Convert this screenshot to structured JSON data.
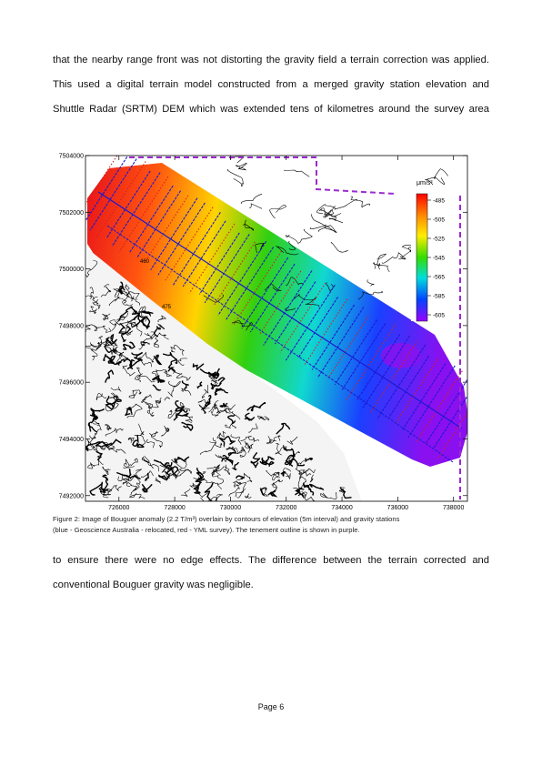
{
  "body": {
    "para1": [
      "that the nearby range front was not distorting the gravity field a terrain correction was applied.",
      "This used a digital terrain model constructed from a merged gravity station elevation and",
      "Shuttle Radar (SRTM) DEM which was extended tens of kilometres around the survey area"
    ],
    "para2": [
      "to ensure there were no edge effects. The difference between the terrain corrected and",
      "conventional Bouguer gravity was negligible."
    ]
  },
  "figure": {
    "caption_line1": "Figure 2: Image of Bouguer anomaly (2.2 T/m³) overlain by contours of elevation (5m interval) and gravity stations",
    "caption_line2": "(blue - Geoscience Australia - relocated, red - YML survey). The tenement outline is shown in purple.",
    "map_labels": [
      "460",
      "475"
    ],
    "colors": {
      "ga_stations": "#1a1ad0",
      "yml_stations": "#d02020",
      "tenement": "#9a2ad0",
      "contours": "#000000"
    }
  },
  "chart_data": {
    "type": "heatmap",
    "x_ticks": [
      726000,
      728000,
      730000,
      732000,
      734000,
      736000,
      738000
    ],
    "y_ticks": [
      7492000,
      7494000,
      7496000,
      7498000,
      7500000,
      7502000,
      7504000
    ],
    "xlim": [
      724800,
      738500
    ],
    "ylim": [
      7491800,
      7504000
    ],
    "legend": {
      "unit": "μm/s²",
      "ticks": [
        -485,
        -505,
        -525,
        -545,
        -565,
        -585,
        -605
      ],
      "colors": [
        "#ff0000",
        "#ff8800",
        "#ffee00",
        "#33dd00",
        "#00dddd",
        "#0044ff",
        "#9900ff"
      ],
      "placement": "top-right"
    },
    "grid": false
  },
  "footer": {
    "page": "Page 6"
  }
}
